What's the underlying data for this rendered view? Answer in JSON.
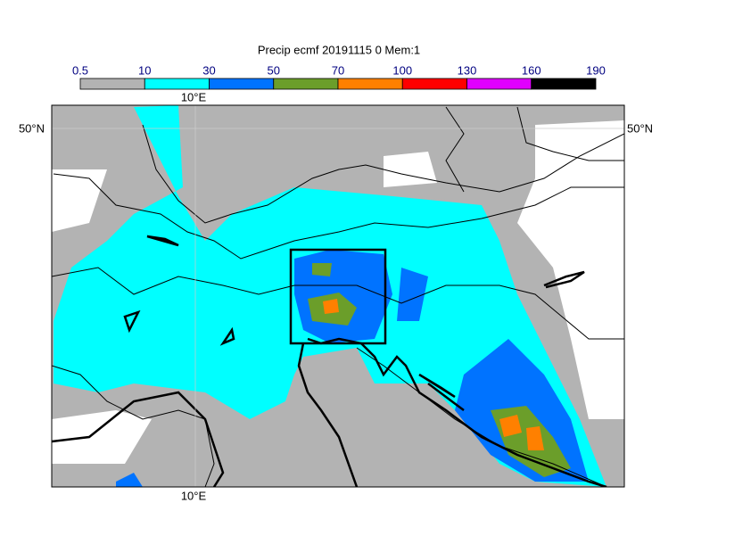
{
  "title": "Precip ecmf 20191115 0 Mem:1",
  "colorbar": {
    "ticks": [
      0.5,
      10,
      30,
      50,
      70,
      100,
      130,
      160,
      190
    ],
    "colors": [
      "#b3b3b3",
      "#00ffff",
      "#0073ff",
      "#6b9e2a",
      "#ff8000",
      "#ff0000",
      "#e100ff",
      "#000000"
    ]
  },
  "map": {
    "lon_label": "10°E",
    "lat_label": "50°N"
  }
}
